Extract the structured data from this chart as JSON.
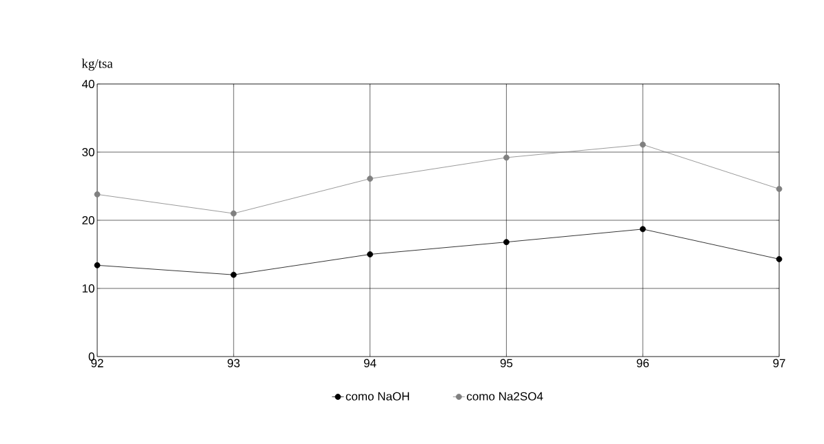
{
  "chart_data": {
    "type": "line",
    "ylabel": "kg/tsa",
    "x": [
      92,
      93,
      94,
      95,
      96,
      97
    ],
    "series": [
      {
        "name": "como NaOH",
        "color": "#000000",
        "values": [
          13.4,
          12.0,
          15.0,
          16.8,
          18.7,
          14.3
        ]
      },
      {
        "name": "como Na2SO4",
        "color": "#808080",
        "values": [
          23.8,
          21.0,
          26.1,
          29.2,
          31.1,
          24.6
        ]
      }
    ],
    "xlim": [
      92,
      97
    ],
    "xticks": [
      92,
      93,
      94,
      95,
      96,
      97
    ],
    "ylim": [
      0,
      40
    ],
    "yticks": [
      0,
      10,
      20,
      30,
      40
    ],
    "grid": true,
    "legend": "bottom",
    "marker": "circle",
    "line_style": "solid"
  }
}
